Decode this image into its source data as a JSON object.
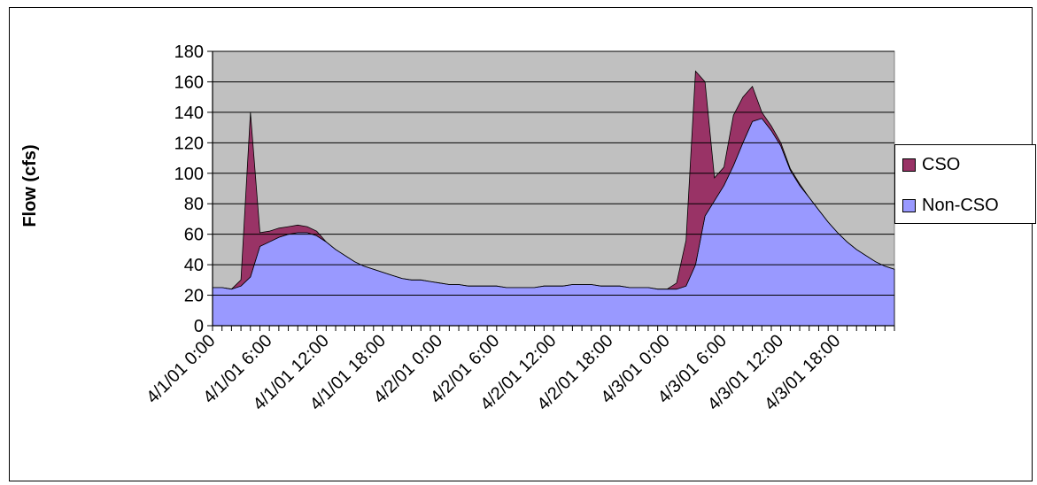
{
  "chart_data": {
    "type": "area",
    "stacked": true,
    "ylabel": "Flow (cfs)",
    "ylim": [
      0,
      180
    ],
    "yticks": [
      0,
      20,
      40,
      60,
      80,
      100,
      120,
      140,
      160,
      180
    ],
    "grid": true,
    "plot_background": "#c0c0c0",
    "legend_position": "right",
    "x_unit": "hours since 4/1/01 0:00",
    "x_tick_labels": [
      {
        "x": 0,
        "label": "4/1/01 0:00"
      },
      {
        "x": 6,
        "label": "4/1/01 6:00"
      },
      {
        "x": 12,
        "label": "4/1/01 12:00"
      },
      {
        "x": 18,
        "label": "4/1/01 18:00"
      },
      {
        "x": 24,
        "label": "4/2/01 0:00"
      },
      {
        "x": 30,
        "label": "4/2/01 6:00"
      },
      {
        "x": 36,
        "label": "4/2/01 12:00"
      },
      {
        "x": 42,
        "label": "4/2/01 18:00"
      },
      {
        "x": 48,
        "label": "4/3/01 0:00"
      },
      {
        "x": 54,
        "label": "4/3/01 6:00"
      },
      {
        "x": 60,
        "label": "4/3/01 12:00"
      },
      {
        "x": 66,
        "label": "4/3/01 18:00"
      }
    ],
    "x": [
      0,
      1,
      2,
      3,
      4,
      5,
      6,
      7,
      8,
      9,
      10,
      11,
      12,
      13,
      14,
      15,
      16,
      17,
      18,
      19,
      20,
      21,
      22,
      23,
      24,
      25,
      26,
      27,
      28,
      29,
      30,
      31,
      32,
      33,
      34,
      35,
      36,
      37,
      38,
      39,
      40,
      41,
      42,
      43,
      44,
      45,
      46,
      47,
      48,
      49,
      50,
      51,
      52,
      53,
      54,
      55,
      56,
      57,
      58,
      59,
      60,
      61,
      62,
      63,
      64,
      65,
      66,
      67,
      68,
      69,
      70,
      71,
      72
    ],
    "series": [
      {
        "name": "Non-CSO",
        "color": "#9999ff",
        "values": [
          25,
          25,
          24,
          26,
          32,
          52,
          55,
          58,
          60,
          61,
          61,
          59,
          55,
          50,
          46,
          42,
          39,
          37,
          35,
          33,
          31,
          30,
          30,
          29,
          28,
          27,
          27,
          26,
          26,
          26,
          26,
          25,
          25,
          25,
          25,
          26,
          26,
          26,
          27,
          27,
          27,
          26,
          26,
          26,
          25,
          25,
          25,
          24,
          24,
          24,
          26,
          40,
          72,
          82,
          92,
          105,
          120,
          134,
          136,
          128,
          118,
          102,
          92,
          84,
          76,
          68,
          61,
          55,
          50,
          46,
          42,
          39,
          37
        ]
      },
      {
        "name": "CSO",
        "color": "#993366",
        "values": [
          0,
          0,
          0,
          4,
          108,
          9,
          7,
          6,
          5,
          5,
          4,
          3,
          0,
          0,
          0,
          0,
          0,
          0,
          0,
          0,
          0,
          0,
          0,
          0,
          0,
          0,
          0,
          0,
          0,
          0,
          0,
          0,
          0,
          0,
          0,
          0,
          0,
          0,
          0,
          0,
          0,
          0,
          0,
          0,
          0,
          0,
          0,
          0,
          0,
          4,
          30,
          127,
          88,
          15,
          12,
          33,
          30,
          23,
          4,
          3,
          2,
          1,
          1,
          0,
          0,
          0,
          0,
          0,
          0,
          0,
          0,
          0,
          0
        ]
      }
    ]
  }
}
